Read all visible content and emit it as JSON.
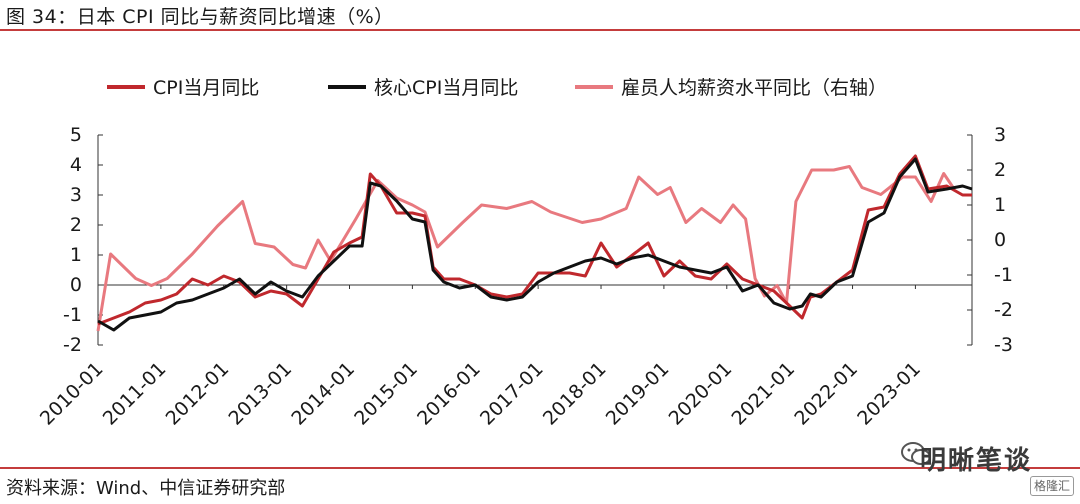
{
  "header": {
    "title": "图 34：日本 CPI 同比与薪资同比增速（%）"
  },
  "footer": {
    "source": "资料来源：Wind、中信证券研究部"
  },
  "watermark": {
    "text": "明晰笔谈",
    "badge": "格隆汇"
  },
  "chart_data": {
    "type": "line",
    "y_left": {
      "range": [
        -2,
        5
      ],
      "ticks": [
        "5",
        "4",
        "3",
        "2",
        "1",
        "0",
        "-1",
        "-2"
      ]
    },
    "y_right": {
      "range": [
        -3,
        3
      ],
      "ticks": [
        "3",
        "2",
        "1",
        "0",
        "-1",
        "-2",
        "-3"
      ]
    },
    "x_ticks": [
      "2010-01",
      "2011-01",
      "2012-01",
      "2013-01",
      "2014-01",
      "2015-01",
      "2016-01",
      "2017-01",
      "2018-01",
      "2019-01",
      "2020-01",
      "2021-01",
      "2022-01",
      "2023-01"
    ],
    "x_range": [
      2010.0,
      2023.9
    ],
    "series": [
      {
        "name": "CPI当月同比",
        "color": "#c0282d",
        "axis": "left",
        "points": [
          [
            2010.0,
            -1.3
          ],
          [
            2010.25,
            -1.1
          ],
          [
            2010.5,
            -0.9
          ],
          [
            2010.75,
            -0.6
          ],
          [
            2011.0,
            -0.5
          ],
          [
            2011.25,
            -0.3
          ],
          [
            2011.5,
            0.2
          ],
          [
            2011.75,
            0.0
          ],
          [
            2012.0,
            0.3
          ],
          [
            2012.25,
            0.1
          ],
          [
            2012.5,
            -0.4
          ],
          [
            2012.75,
            -0.2
          ],
          [
            2013.0,
            -0.3
          ],
          [
            2013.25,
            -0.7
          ],
          [
            2013.5,
            0.2
          ],
          [
            2013.75,
            1.1
          ],
          [
            2014.0,
            1.4
          ],
          [
            2014.2,
            1.6
          ],
          [
            2014.33,
            3.7
          ],
          [
            2014.5,
            3.3
          ],
          [
            2014.75,
            2.4
          ],
          [
            2015.0,
            2.4
          ],
          [
            2015.2,
            2.3
          ],
          [
            2015.33,
            0.6
          ],
          [
            2015.5,
            0.2
          ],
          [
            2015.75,
            0.2
          ],
          [
            2016.0,
            0.0
          ],
          [
            2016.25,
            -0.3
          ],
          [
            2016.5,
            -0.4
          ],
          [
            2016.75,
            -0.3
          ],
          [
            2017.0,
            0.4
          ],
          [
            2017.25,
            0.4
          ],
          [
            2017.5,
            0.4
          ],
          [
            2017.75,
            0.3
          ],
          [
            2018.0,
            1.4
          ],
          [
            2018.25,
            0.6
          ],
          [
            2018.5,
            1.0
          ],
          [
            2018.75,
            1.4
          ],
          [
            2019.0,
            0.3
          ],
          [
            2019.25,
            0.8
          ],
          [
            2019.5,
            0.3
          ],
          [
            2019.75,
            0.2
          ],
          [
            2020.0,
            0.7
          ],
          [
            2020.25,
            0.2
          ],
          [
            2020.5,
            0.0
          ],
          [
            2020.75,
            -0.2
          ],
          [
            2021.0,
            -0.7
          ],
          [
            2021.2,
            -1.1
          ],
          [
            2021.33,
            -0.4
          ],
          [
            2021.5,
            -0.3
          ],
          [
            2021.75,
            0.1
          ],
          [
            2022.0,
            0.5
          ],
          [
            2022.25,
            2.5
          ],
          [
            2022.5,
            2.6
          ],
          [
            2022.75,
            3.7
          ],
          [
            2023.0,
            4.3
          ],
          [
            2023.2,
            3.2
          ],
          [
            2023.5,
            3.3
          ],
          [
            2023.75,
            3.0
          ],
          [
            2023.9,
            3.0
          ]
        ]
      },
      {
        "name": "核心CPI当月同比",
        "color": "#111111",
        "axis": "left",
        "points": [
          [
            2010.0,
            -1.2
          ],
          [
            2010.25,
            -1.5
          ],
          [
            2010.5,
            -1.1
          ],
          [
            2010.75,
            -1.0
          ],
          [
            2011.0,
            -0.9
          ],
          [
            2011.25,
            -0.6
          ],
          [
            2011.5,
            -0.5
          ],
          [
            2011.75,
            -0.3
          ],
          [
            2012.0,
            -0.1
          ],
          [
            2012.25,
            0.2
          ],
          [
            2012.5,
            -0.3
          ],
          [
            2012.75,
            0.1
          ],
          [
            2013.0,
            -0.2
          ],
          [
            2013.25,
            -0.4
          ],
          [
            2013.5,
            0.3
          ],
          [
            2013.75,
            0.8
          ],
          [
            2014.0,
            1.3
          ],
          [
            2014.2,
            1.3
          ],
          [
            2014.33,
            3.4
          ],
          [
            2014.5,
            3.3
          ],
          [
            2014.75,
            2.8
          ],
          [
            2015.0,
            2.2
          ],
          [
            2015.2,
            2.1
          ],
          [
            2015.33,
            0.5
          ],
          [
            2015.5,
            0.1
          ],
          [
            2015.75,
            -0.1
          ],
          [
            2016.0,
            0.0
          ],
          [
            2016.25,
            -0.4
          ],
          [
            2016.5,
            -0.5
          ],
          [
            2016.75,
            -0.4
          ],
          [
            2017.0,
            0.1
          ],
          [
            2017.25,
            0.4
          ],
          [
            2017.5,
            0.6
          ],
          [
            2017.75,
            0.8
          ],
          [
            2018.0,
            0.9
          ],
          [
            2018.25,
            0.7
          ],
          [
            2018.5,
            0.9
          ],
          [
            2018.75,
            1.0
          ],
          [
            2019.0,
            0.8
          ],
          [
            2019.25,
            0.6
          ],
          [
            2019.5,
            0.5
          ],
          [
            2019.75,
            0.4
          ],
          [
            2020.0,
            0.6
          ],
          [
            2020.25,
            -0.2
          ],
          [
            2020.5,
            0.0
          ],
          [
            2020.75,
            -0.6
          ],
          [
            2021.0,
            -0.8
          ],
          [
            2021.2,
            -0.7
          ],
          [
            2021.33,
            -0.3
          ],
          [
            2021.5,
            -0.4
          ],
          [
            2021.75,
            0.1
          ],
          [
            2022.0,
            0.3
          ],
          [
            2022.25,
            2.1
          ],
          [
            2022.5,
            2.4
          ],
          [
            2022.75,
            3.6
          ],
          [
            2023.0,
            4.2
          ],
          [
            2023.2,
            3.1
          ],
          [
            2023.5,
            3.2
          ],
          [
            2023.75,
            3.3
          ],
          [
            2023.9,
            3.2
          ]
        ]
      },
      {
        "name": "雇员人均薪资水平同比（右轴）",
        "color": "#e8797f",
        "axis": "right",
        "points": [
          [
            2010.0,
            -2.6
          ],
          [
            2010.2,
            -0.4
          ],
          [
            2010.6,
            -1.1
          ],
          [
            2010.85,
            -1.3
          ],
          [
            2011.1,
            -1.1
          ],
          [
            2011.5,
            -0.4
          ],
          [
            2011.9,
            0.4
          ],
          [
            2012.3,
            1.1
          ],
          [
            2012.5,
            -0.1
          ],
          [
            2012.8,
            -0.2
          ],
          [
            2013.1,
            -0.7
          ],
          [
            2013.3,
            -0.8
          ],
          [
            2013.5,
            0.0
          ],
          [
            2013.7,
            -0.6
          ],
          [
            2014.1,
            0.6
          ],
          [
            2014.45,
            1.7
          ],
          [
            2014.75,
            1.2
          ],
          [
            2015.0,
            1.0
          ],
          [
            2015.2,
            0.8
          ],
          [
            2015.4,
            -0.2
          ],
          [
            2015.8,
            0.5
          ],
          [
            2016.1,
            1.0
          ],
          [
            2016.5,
            0.9
          ],
          [
            2016.9,
            1.1
          ],
          [
            2017.2,
            0.8
          ],
          [
            2017.7,
            0.5
          ],
          [
            2018.0,
            0.6
          ],
          [
            2018.4,
            0.9
          ],
          [
            2018.6,
            1.8
          ],
          [
            2018.9,
            1.3
          ],
          [
            2019.1,
            1.5
          ],
          [
            2019.35,
            0.5
          ],
          [
            2019.6,
            0.9
          ],
          [
            2019.9,
            0.5
          ],
          [
            2020.1,
            1.0
          ],
          [
            2020.3,
            0.6
          ],
          [
            2020.45,
            -1.1
          ],
          [
            2020.6,
            -1.6
          ],
          [
            2020.8,
            -1.3
          ],
          [
            2020.95,
            -1.8
          ],
          [
            2021.1,
            1.1
          ],
          [
            2021.35,
            2.0
          ],
          [
            2021.7,
            2.0
          ],
          [
            2021.95,
            2.1
          ],
          [
            2022.15,
            1.5
          ],
          [
            2022.45,
            1.3
          ],
          [
            2022.8,
            1.8
          ],
          [
            2023.0,
            1.8
          ],
          [
            2023.25,
            1.1
          ],
          [
            2023.45,
            1.9
          ],
          [
            2023.6,
            1.5
          ]
        ]
      }
    ]
  }
}
